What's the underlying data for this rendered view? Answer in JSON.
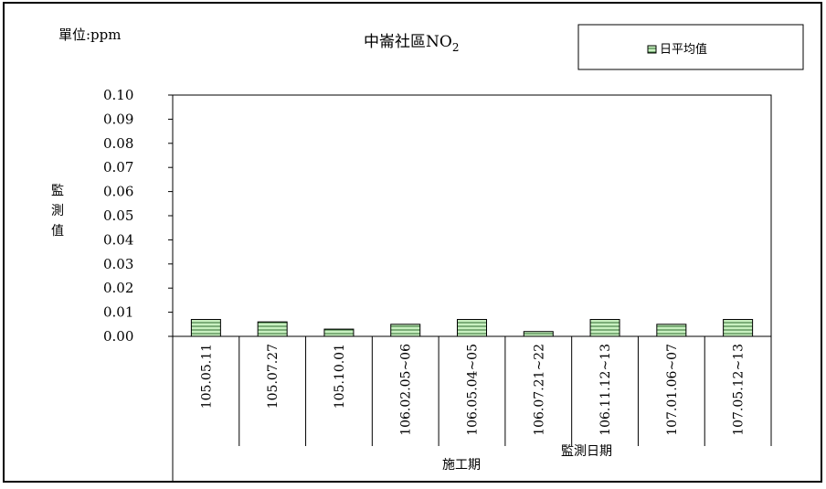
{
  "chart_data": {
    "type": "bar",
    "title_main": "中崙社區NO",
    "title_sub": "2",
    "unit_label": "單位:ppm",
    "ylabel_chars": [
      "監",
      "測",
      "值"
    ],
    "legend": [
      "日平均值"
    ],
    "xlabel": "監測日期",
    "period_label": "施工期",
    "categories": [
      "105.05.11",
      "105.07.27",
      "105.10.01",
      "106.02.05~06",
      "106.05.04~05",
      "106.07.21~22",
      "106.11.12~13",
      "107.01.06~07",
      "107.05.12~13"
    ],
    "series": [
      {
        "name": "日平均值",
        "values": [
          0.007,
          0.006,
          0.003,
          0.005,
          0.007,
          0.002,
          0.007,
          0.005,
          0.007
        ]
      }
    ],
    "ylim": [
      0,
      0.1
    ],
    "yticks": [
      "0.00",
      "0.01",
      "0.02",
      "0.03",
      "0.04",
      "0.05",
      "0.06",
      "0.07",
      "0.08",
      "0.09",
      "0.10"
    ],
    "bar_fill": "#c8f0c0",
    "bar_stripe": "#2f6b2f"
  }
}
